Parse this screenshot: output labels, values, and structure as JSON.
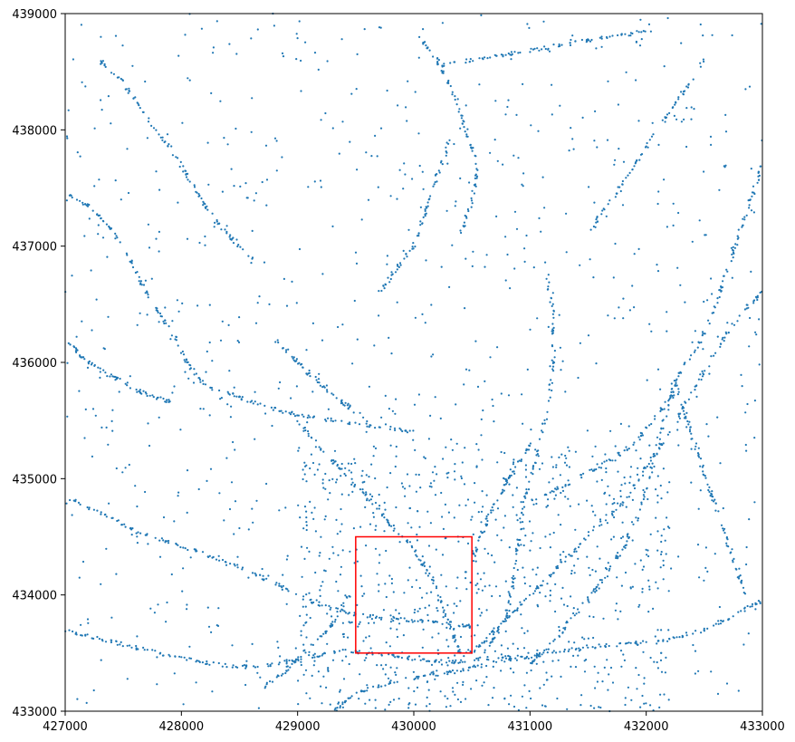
{
  "chart_data": {
    "type": "scatter",
    "title": "",
    "xlabel": "",
    "ylabel": "",
    "xlim": [
      427000,
      433000
    ],
    "ylim": [
      433000,
      439000
    ],
    "grid": false,
    "x_ticks": [
      427000,
      428000,
      429000,
      430000,
      431000,
      432000,
      433000
    ],
    "y_ticks": [
      433000,
      434000,
      435000,
      436000,
      437000,
      438000,
      439000
    ],
    "x_tick_labels": [
      "427000",
      "428000",
      "429000",
      "430000",
      "431000",
      "432000",
      "433000"
    ],
    "y_tick_labels": [
      "433000",
      "434000",
      "435000",
      "436000",
      "437000",
      "438000",
      "439000"
    ],
    "marker_color": "#1f77b4",
    "highlight_rect": {
      "x0": 429500,
      "x1": 430500,
      "y0": 433500,
      "y1": 434500,
      "color": "#ff0000"
    },
    "point_traces": [
      [
        [
          427000,
          437450
        ],
        [
          427200,
          437350
        ],
        [
          427400,
          437150
        ],
        [
          427600,
          436800
        ],
        [
          427750,
          436500
        ],
        [
          427900,
          436300
        ],
        [
          428050,
          436000
        ],
        [
          428200,
          435800
        ]
      ],
      [
        [
          428200,
          435800
        ],
        [
          428500,
          435700
        ],
        [
          428800,
          435600
        ],
        [
          429000,
          435550
        ],
        [
          429300,
          435500
        ],
        [
          429700,
          435450
        ],
        [
          430000,
          435400
        ]
      ],
      [
        [
          427000,
          434850
        ],
        [
          427300,
          434700
        ],
        [
          427600,
          434550
        ],
        [
          427900,
          434450
        ],
        [
          428200,
          434350
        ],
        [
          428500,
          434250
        ],
        [
          428800,
          434100
        ],
        [
          429100,
          433950
        ],
        [
          429400,
          433850
        ],
        [
          429700,
          433800
        ],
        [
          430000,
          433780
        ],
        [
          430300,
          433760
        ],
        [
          430500,
          433730
        ]
      ],
      [
        [
          427000,
          433700
        ],
        [
          427300,
          433620
        ],
        [
          427600,
          433550
        ],
        [
          427900,
          433480
        ],
        [
          428200,
          433420
        ],
        [
          428500,
          433380
        ],
        [
          428800,
          433400
        ],
        [
          429100,
          433470
        ],
        [
          429400,
          433520
        ],
        [
          429700,
          433490
        ],
        [
          430000,
          433450
        ],
        [
          430300,
          433420
        ],
        [
          430600,
          433450
        ],
        [
          430900,
          433470
        ]
      ],
      [
        [
          428700,
          433200
        ],
        [
          428900,
          433350
        ],
        [
          429100,
          433550
        ],
        [
          429300,
          433750
        ],
        [
          429450,
          434000
        ]
      ],
      [
        [
          429000,
          435500
        ],
        [
          429200,
          435250
        ],
        [
          429400,
          435050
        ],
        [
          429600,
          434850
        ],
        [
          429800,
          434600
        ],
        [
          430000,
          434400
        ],
        [
          430150,
          434150
        ],
        [
          430250,
          433900
        ],
        [
          430350,
          433650
        ],
        [
          430400,
          433450
        ]
      ],
      [
        [
          431000,
          433400
        ],
        [
          431200,
          433600
        ],
        [
          431400,
          433850
        ],
        [
          431600,
          434100
        ],
        [
          431800,
          434400
        ],
        [
          431950,
          434750
        ],
        [
          432050,
          435100
        ],
        [
          432150,
          435500
        ],
        [
          432250,
          435850
        ]
      ],
      [
        [
          430500,
          433500
        ],
        [
          430700,
          433700
        ],
        [
          430900,
          433900
        ],
        [
          431100,
          434100
        ],
        [
          431300,
          434300
        ],
        [
          431550,
          434550
        ],
        [
          431800,
          434800
        ],
        [
          432000,
          435100
        ],
        [
          432200,
          435400
        ],
        [
          432400,
          435750
        ],
        [
          432600,
          436100
        ],
        [
          432800,
          436400
        ],
        [
          433000,
          436600
        ]
      ],
      [
        [
          431000,
          434800
        ],
        [
          431300,
          434950
        ],
        [
          431600,
          435100
        ],
        [
          431900,
          435300
        ],
        [
          432100,
          435550
        ],
        [
          432300,
          435800
        ]
      ],
      [
        [
          430600,
          433500
        ],
        [
          430800,
          433800
        ],
        [
          430850,
          434100
        ],
        [
          430900,
          434450
        ],
        [
          430950,
          434800
        ],
        [
          431050,
          435150
        ],
        [
          431150,
          435600
        ],
        [
          431200,
          436000
        ],
        [
          431200,
          436400
        ],
        [
          431150,
          436750
        ]
      ],
      [
        [
          430400,
          437100
        ],
        [
          430500,
          437400
        ],
        [
          430550,
          437700
        ],
        [
          430450,
          438000
        ],
        [
          430350,
          438300
        ],
        [
          430200,
          438600
        ],
        [
          430050,
          438800
        ]
      ],
      [
        [
          429300,
          433000
        ],
        [
          429500,
          433150
        ],
        [
          429800,
          433250
        ],
        [
          430100,
          433300
        ],
        [
          430400,
          433350
        ],
        [
          430700,
          433420
        ],
        [
          431000,
          433470
        ],
        [
          431300,
          433520
        ],
        [
          431600,
          433560
        ],
        [
          431900,
          433580
        ],
        [
          432200,
          433620
        ],
        [
          432500,
          433700
        ],
        [
          432800,
          433850
        ],
        [
          433000,
          433950
        ]
      ],
      [
        [
          432250,
          435850
        ],
        [
          432450,
          436150
        ],
        [
          432600,
          436500
        ],
        [
          432700,
          436800
        ],
        [
          432800,
          437100
        ],
        [
          432900,
          437400
        ],
        [
          433000,
          437700
        ]
      ],
      [
        [
          428600,
          436900
        ],
        [
          428400,
          437100
        ],
        [
          428200,
          437350
        ],
        [
          428050,
          437600
        ],
        [
          427900,
          437850
        ],
        [
          427700,
          438100
        ],
        [
          427500,
          438400
        ],
        [
          427300,
          438600
        ]
      ],
      [
        [
          432000,
          438850
        ],
        [
          431700,
          438800
        ],
        [
          431400,
          438750
        ],
        [
          431100,
          438700
        ],
        [
          430800,
          438650
        ],
        [
          430500,
          438600
        ],
        [
          430200,
          438550
        ]
      ],
      [
        [
          429700,
          436600
        ],
        [
          429850,
          436800
        ],
        [
          430000,
          437000
        ],
        [
          430100,
          437300
        ],
        [
          430200,
          437600
        ],
        [
          430300,
          437900
        ]
      ],
      [
        [
          432250,
          435850
        ],
        [
          432350,
          435500
        ],
        [
          432450,
          435200
        ],
        [
          432550,
          434900
        ],
        [
          432650,
          434600
        ],
        [
          432750,
          434300
        ],
        [
          432850,
          434000
        ]
      ],
      [
        [
          427000,
          436200
        ],
        [
          427150,
          436050
        ],
        [
          427350,
          435900
        ],
        [
          427550,
          435800
        ],
        [
          427750,
          435700
        ],
        [
          427950,
          435650
        ]
      ],
      [
        [
          428800,
          436200
        ],
        [
          429000,
          436000
        ],
        [
          429200,
          435800
        ],
        [
          429400,
          435650
        ],
        [
          429600,
          435500
        ]
      ],
      [
        [
          430500,
          434300
        ],
        [
          430600,
          434550
        ],
        [
          430700,
          434800
        ],
        [
          430850,
          435050
        ],
        [
          431000,
          435300
        ]
      ],
      [
        [
          431500,
          437100
        ],
        [
          431700,
          437400
        ],
        [
          431900,
          437700
        ],
        [
          432100,
          438000
        ],
        [
          432300,
          438300
        ],
        [
          432500,
          438600
        ]
      ]
    ]
  }
}
